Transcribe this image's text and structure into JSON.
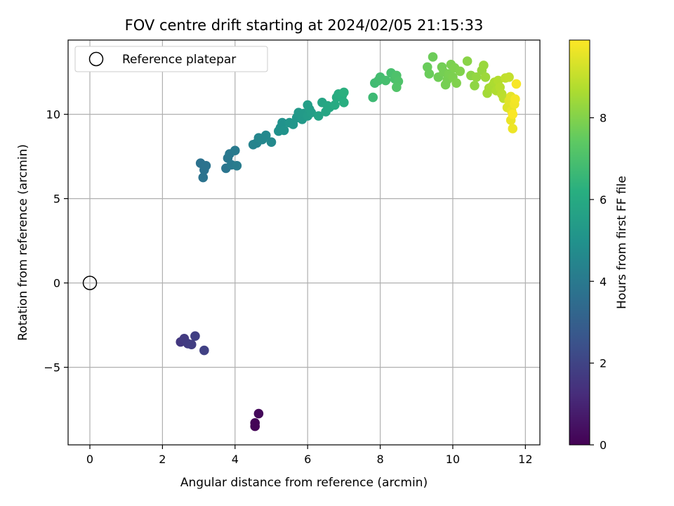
{
  "chart_data": {
    "type": "scatter",
    "title": "FOV centre drift starting at 2024/02/05 21:15:33",
    "xlabel": "Angular distance from reference (arcmin)",
    "ylabel": "Rotation from reference (arcmin)",
    "xlim": [
      -0.6,
      12.4
    ],
    "ylim": [
      -9.6,
      14.4
    ],
    "xticks": [
      0,
      2,
      4,
      6,
      8,
      10,
      12
    ],
    "xtick_labels": [
      "0",
      "2",
      "4",
      "6",
      "8",
      "10",
      "12"
    ],
    "yticks": [
      -5,
      0,
      5,
      10
    ],
    "ytick_labels": [
      "−5",
      "0",
      "5",
      "10"
    ],
    "grid": true,
    "legend": {
      "position": "top-left",
      "entries": [
        "Reference platepar"
      ]
    },
    "reference_point": {
      "x": 0,
      "y": 0,
      "label": "Reference platepar"
    },
    "colorbar": {
      "label": "Hours from first FF file",
      "colormap": "viridis",
      "range": [
        0,
        9.9
      ],
      "ticks": [
        0,
        2,
        4,
        6,
        8
      ],
      "tick_labels": [
        "0",
        "2",
        "4",
        "6",
        "8"
      ]
    },
    "series": [
      {
        "color_by": "hours",
        "points": [
          {
            "x": 4.55,
            "y": -8.3,
            "c": 0.1
          },
          {
            "x": 4.55,
            "y": -8.5,
            "c": 0.1
          },
          {
            "x": 4.65,
            "y": -7.75,
            "c": 0.2
          },
          {
            "x": 2.5,
            "y": -3.5,
            "c": 1.6
          },
          {
            "x": 2.6,
            "y": -3.3,
            "c": 1.7
          },
          {
            "x": 2.7,
            "y": -3.6,
            "c": 1.75
          },
          {
            "x": 2.8,
            "y": -3.65,
            "c": 1.8
          },
          {
            "x": 2.9,
            "y": -3.15,
            "c": 1.85
          },
          {
            "x": 3.15,
            "y": -4.0,
            "c": 1.9
          },
          {
            "x": 3.05,
            "y": 7.1,
            "c": 3.7
          },
          {
            "x": 3.15,
            "y": 6.7,
            "c": 3.72
          },
          {
            "x": 3.2,
            "y": 6.95,
            "c": 3.74
          },
          {
            "x": 3.12,
            "y": 6.25,
            "c": 3.76
          },
          {
            "x": 3.75,
            "y": 6.8,
            "c": 3.85
          },
          {
            "x": 3.8,
            "y": 7.4,
            "c": 3.9
          },
          {
            "x": 3.85,
            "y": 7.65,
            "c": 3.95
          },
          {
            "x": 3.9,
            "y": 7.0,
            "c": 4.0
          },
          {
            "x": 4.0,
            "y": 7.85,
            "c": 4.05
          },
          {
            "x": 4.05,
            "y": 6.95,
            "c": 4.1
          },
          {
            "x": 4.5,
            "y": 8.2,
            "c": 4.4
          },
          {
            "x": 4.6,
            "y": 8.3,
            "c": 4.45
          },
          {
            "x": 4.65,
            "y": 8.6,
            "c": 4.5
          },
          {
            "x": 4.75,
            "y": 8.5,
            "c": 4.55
          },
          {
            "x": 4.85,
            "y": 8.75,
            "c": 4.6
          },
          {
            "x": 5.0,
            "y": 8.35,
            "c": 4.65
          },
          {
            "x": 5.2,
            "y": 9.0,
            "c": 4.9
          },
          {
            "x": 5.25,
            "y": 9.2,
            "c": 4.95
          },
          {
            "x": 5.3,
            "y": 9.5,
            "c": 5.0
          },
          {
            "x": 5.35,
            "y": 9.05,
            "c": 5.02
          },
          {
            "x": 5.5,
            "y": 9.5,
            "c": 5.1
          },
          {
            "x": 5.6,
            "y": 9.4,
            "c": 5.15
          },
          {
            "x": 5.7,
            "y": 9.8,
            "c": 5.2
          },
          {
            "x": 5.75,
            "y": 10.1,
            "c": 5.25
          },
          {
            "x": 5.85,
            "y": 9.7,
            "c": 5.3
          },
          {
            "x": 5.9,
            "y": 10.05,
            "c": 5.35
          },
          {
            "x": 6.0,
            "y": 9.9,
            "c": 5.4
          },
          {
            "x": 6.05,
            "y": 10.3,
            "c": 5.45
          },
          {
            "x": 6.0,
            "y": 10.55,
            "c": 5.5
          },
          {
            "x": 6.1,
            "y": 10.1,
            "c": 5.5
          },
          {
            "x": 6.3,
            "y": 9.9,
            "c": 5.7
          },
          {
            "x": 6.4,
            "y": 10.7,
            "c": 5.75
          },
          {
            "x": 6.5,
            "y": 10.15,
            "c": 5.8
          },
          {
            "x": 6.55,
            "y": 10.5,
            "c": 5.85
          },
          {
            "x": 6.6,
            "y": 10.4,
            "c": 5.9
          },
          {
            "x": 6.75,
            "y": 10.55,
            "c": 6.0
          },
          {
            "x": 6.8,
            "y": 11.0,
            "c": 6.05
          },
          {
            "x": 6.85,
            "y": 11.2,
            "c": 6.1
          },
          {
            "x": 6.95,
            "y": 11.1,
            "c": 6.15
          },
          {
            "x": 7.0,
            "y": 10.7,
            "c": 6.2
          },
          {
            "x": 7.0,
            "y": 11.3,
            "c": 6.25
          },
          {
            "x": 7.8,
            "y": 11.0,
            "c": 6.7
          },
          {
            "x": 7.85,
            "y": 11.85,
            "c": 6.75
          },
          {
            "x": 7.95,
            "y": 12.0,
            "c": 6.8
          },
          {
            "x": 8.0,
            "y": 12.2,
            "c": 6.85
          },
          {
            "x": 8.15,
            "y": 12.0,
            "c": 6.9
          },
          {
            "x": 8.3,
            "y": 12.45,
            "c": 6.95
          },
          {
            "x": 8.4,
            "y": 12.1,
            "c": 7.0
          },
          {
            "x": 8.45,
            "y": 12.3,
            "c": 7.05
          },
          {
            "x": 8.5,
            "y": 11.95,
            "c": 7.1
          },
          {
            "x": 8.45,
            "y": 11.6,
            "c": 7.15
          },
          {
            "x": 9.3,
            "y": 12.8,
            "c": 7.6
          },
          {
            "x": 9.35,
            "y": 12.4,
            "c": 7.62
          },
          {
            "x": 9.45,
            "y": 13.4,
            "c": 7.65
          },
          {
            "x": 9.6,
            "y": 12.2,
            "c": 7.7
          },
          {
            "x": 9.7,
            "y": 12.8,
            "c": 7.75
          },
          {
            "x": 9.75,
            "y": 12.5,
            "c": 7.78
          },
          {
            "x": 9.8,
            "y": 11.75,
            "c": 7.8
          },
          {
            "x": 9.85,
            "y": 12.05,
            "c": 7.82
          },
          {
            "x": 9.9,
            "y": 12.4,
            "c": 7.85
          },
          {
            "x": 9.95,
            "y": 12.95,
            "c": 7.88
          },
          {
            "x": 10.0,
            "y": 12.2,
            "c": 7.9
          },
          {
            "x": 10.05,
            "y": 12.75,
            "c": 7.92
          },
          {
            "x": 10.1,
            "y": 11.85,
            "c": 7.95
          },
          {
            "x": 10.2,
            "y": 12.55,
            "c": 7.98
          },
          {
            "x": 10.4,
            "y": 13.15,
            "c": 8.1
          },
          {
            "x": 10.5,
            "y": 12.3,
            "c": 8.15
          },
          {
            "x": 10.6,
            "y": 11.7,
            "c": 8.2
          },
          {
            "x": 10.65,
            "y": 12.2,
            "c": 8.25
          },
          {
            "x": 10.8,
            "y": 12.6,
            "c": 8.3
          },
          {
            "x": 10.85,
            "y": 12.9,
            "c": 8.35
          },
          {
            "x": 10.9,
            "y": 12.2,
            "c": 8.4
          },
          {
            "x": 10.95,
            "y": 11.25,
            "c": 8.5
          },
          {
            "x": 11.0,
            "y": 11.55,
            "c": 8.55
          },
          {
            "x": 11.1,
            "y": 11.7,
            "c": 8.6
          },
          {
            "x": 11.15,
            "y": 11.9,
            "c": 8.65
          },
          {
            "x": 11.2,
            "y": 11.4,
            "c": 8.7
          },
          {
            "x": 11.25,
            "y": 12.0,
            "c": 8.75
          },
          {
            "x": 11.3,
            "y": 11.6,
            "c": 8.8
          },
          {
            "x": 11.35,
            "y": 11.2,
            "c": 8.85
          },
          {
            "x": 11.4,
            "y": 10.95,
            "c": 8.9
          },
          {
            "x": 11.45,
            "y": 12.15,
            "c": 8.95
          },
          {
            "x": 11.55,
            "y": 12.2,
            "c": 9.0
          },
          {
            "x": 11.5,
            "y": 10.4,
            "c": 9.4
          },
          {
            "x": 11.55,
            "y": 10.8,
            "c": 9.45
          },
          {
            "x": 11.6,
            "y": 11.05,
            "c": 9.5
          },
          {
            "x": 11.62,
            "y": 10.2,
            "c": 9.55
          },
          {
            "x": 11.6,
            "y": 9.65,
            "c": 9.6
          },
          {
            "x": 11.65,
            "y": 9.15,
            "c": 9.65
          },
          {
            "x": 11.7,
            "y": 10.6,
            "c": 9.7
          },
          {
            "x": 11.72,
            "y": 10.9,
            "c": 9.75
          },
          {
            "x": 11.75,
            "y": 11.8,
            "c": 9.8
          },
          {
            "x": 11.65,
            "y": 10.0,
            "c": 9.85
          }
        ]
      }
    ]
  }
}
